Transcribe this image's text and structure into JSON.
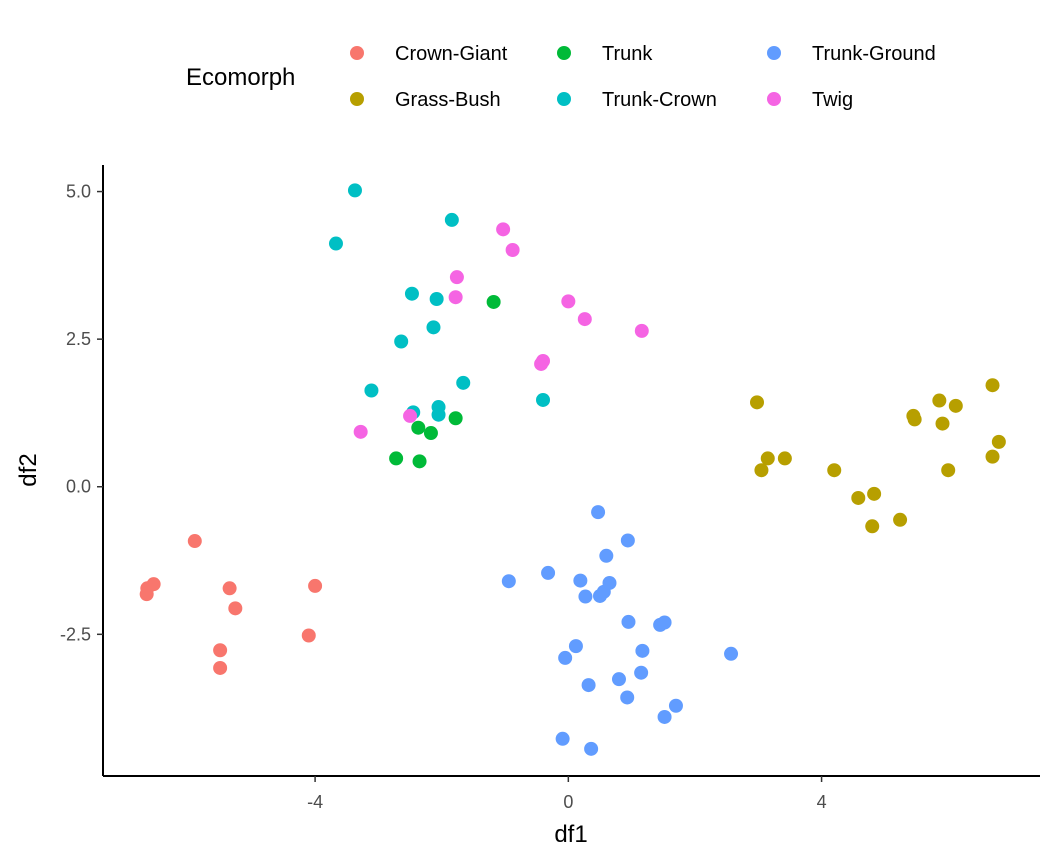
{
  "chart_data": {
    "type": "scatter",
    "xlabel": "df1",
    "ylabel": "df2",
    "xlim": [
      -7.35,
      7.45
    ],
    "ylim": [
      -4.9,
      5.45
    ],
    "x_ticks": [
      -4,
      0,
      4
    ],
    "x_tick_labels": [
      "-4",
      "0",
      "4"
    ],
    "y_ticks": [
      5.0,
      2.5,
      0.0,
      -2.5
    ],
    "y_tick_labels": [
      "5.0",
      "2.5",
      "0.0",
      "-2.5"
    ],
    "grid": false,
    "legend": {
      "title": "Ecomorph",
      "placement": "top"
    },
    "series": [
      {
        "name": "Crown-Giant",
        "color": "#F8766D",
        "points": [
          [
            -5.9,
            -0.92
          ],
          [
            -6.55,
            -1.65
          ],
          [
            -6.65,
            -1.72
          ],
          [
            -6.66,
            -1.82
          ],
          [
            -5.35,
            -1.72
          ],
          [
            -5.26,
            -2.06
          ],
          [
            -4.0,
            -1.68
          ],
          [
            -5.5,
            -2.77
          ],
          [
            -5.5,
            -3.07
          ],
          [
            -4.1,
            -2.52
          ]
        ]
      },
      {
        "name": "Grass-Bush",
        "color": "#B79F00",
        "points": [
          [
            2.98,
            1.43
          ],
          [
            3.15,
            0.48
          ],
          [
            3.05,
            0.28
          ],
          [
            3.42,
            0.48
          ],
          [
            4.2,
            0.28
          ],
          [
            4.58,
            -0.19
          ],
          [
            4.83,
            -0.12
          ],
          [
            4.8,
            -0.67
          ],
          [
            5.24,
            -0.56
          ],
          [
            5.45,
            1.2
          ],
          [
            5.47,
            1.14
          ],
          [
            5.86,
            1.46
          ],
          [
            5.91,
            1.07
          ],
          [
            6.12,
            1.37
          ],
          [
            6.0,
            0.28
          ],
          [
            6.7,
            1.72
          ],
          [
            6.7,
            0.51
          ],
          [
            6.8,
            0.76
          ]
        ]
      },
      {
        "name": "Trunk",
        "color": "#00BA38",
        "points": [
          [
            -1.18,
            3.13
          ],
          [
            -2.37,
            1.0
          ],
          [
            -2.17,
            0.91
          ],
          [
            -1.78,
            1.16
          ],
          [
            -2.72,
            0.48
          ],
          [
            -2.35,
            0.43
          ]
        ]
      },
      {
        "name": "Trunk-Crown",
        "color": "#00BFC4",
        "points": [
          [
            -3.37,
            5.02
          ],
          [
            -3.67,
            4.12
          ],
          [
            -1.84,
            4.52
          ],
          [
            -2.47,
            3.27
          ],
          [
            -2.08,
            3.18
          ],
          [
            -2.13,
            2.7
          ],
          [
            -2.64,
            2.46
          ],
          [
            -3.11,
            1.63
          ],
          [
            -1.66,
            1.76
          ],
          [
            -2.05,
            1.35
          ],
          [
            -2.05,
            1.22
          ],
          [
            -2.45,
            1.26
          ],
          [
            -0.4,
            1.47
          ]
        ]
      },
      {
        "name": "Trunk-Ground",
        "color": "#619CFF",
        "points": [
          [
            0.47,
            -0.43
          ],
          [
            0.94,
            -0.91
          ],
          [
            0.6,
            -1.17
          ],
          [
            -0.32,
            -1.46
          ],
          [
            -0.94,
            -1.6
          ],
          [
            0.19,
            -1.59
          ],
          [
            0.27,
            -1.86
          ],
          [
            0.5,
            -1.85
          ],
          [
            0.56,
            -1.78
          ],
          [
            0.65,
            -1.63
          ],
          [
            0.95,
            -2.29
          ],
          [
            1.45,
            -2.34
          ],
          [
            1.52,
            -2.3
          ],
          [
            1.17,
            -2.78
          ],
          [
            0.12,
            -2.7
          ],
          [
            -0.05,
            -2.9
          ],
          [
            2.57,
            -2.83
          ],
          [
            0.8,
            -3.26
          ],
          [
            1.15,
            -3.15
          ],
          [
            0.32,
            -3.36
          ],
          [
            0.93,
            -3.57
          ],
          [
            1.7,
            -3.71
          ],
          [
            1.52,
            -3.9
          ],
          [
            -0.09,
            -4.27
          ],
          [
            0.36,
            -4.44
          ]
        ]
      },
      {
        "name": "Twig",
        "color": "#F564E3",
        "points": [
          [
            -1.03,
            4.36
          ],
          [
            -0.88,
            4.01
          ],
          [
            -1.76,
            3.55
          ],
          [
            -1.78,
            3.21
          ],
          [
            0.0,
            3.14
          ],
          [
            0.26,
            2.84
          ],
          [
            1.16,
            2.64
          ],
          [
            -0.43,
            2.08
          ],
          [
            -0.4,
            2.13
          ],
          [
            -2.5,
            1.2
          ],
          [
            -3.28,
            0.93
          ]
        ]
      }
    ]
  }
}
